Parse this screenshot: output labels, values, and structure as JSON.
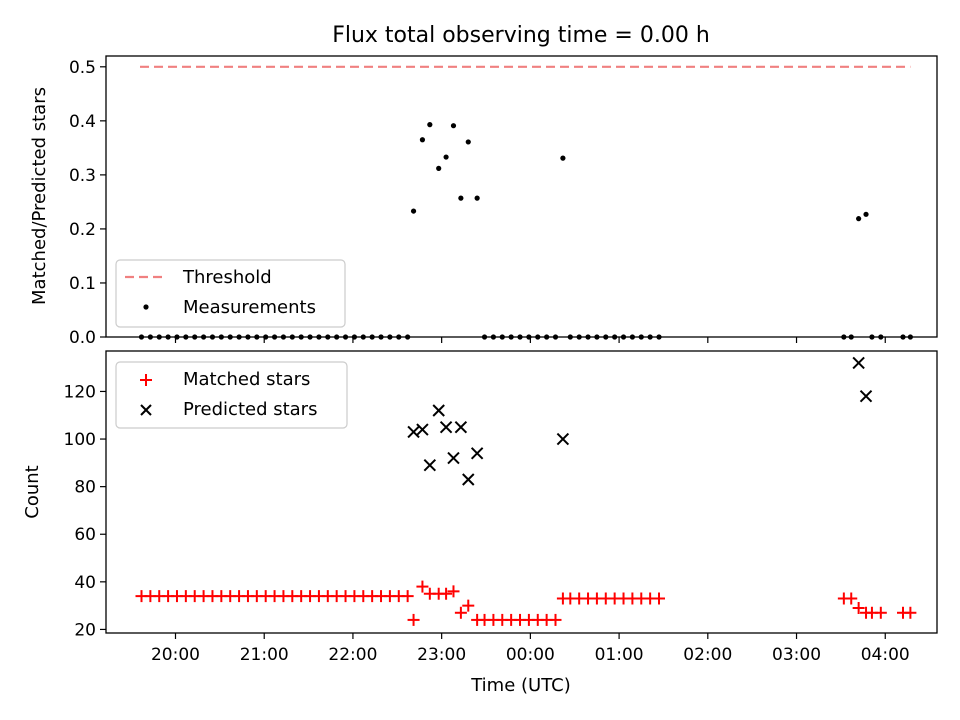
{
  "chart_data": [
    {
      "type": "scatter",
      "title": "Flux total observing time = 0.00 h",
      "xlabel": "",
      "ylabel": "Matched/Predicted stars",
      "ylim": [
        0,
        0.52
      ],
      "yticks": [
        "0.0",
        "0.1",
        "0.2",
        "0.3",
        "0.4",
        "0.5"
      ],
      "legend_position": "lower-left",
      "threshold": {
        "name": "Threshold",
        "value": 0.5,
        "x": [
          "19:36",
          "04:17"
        ],
        "color": "#f08080"
      },
      "series": [
        {
          "name": "Measurements",
          "color": "#000000",
          "points": [
            [
              "19:37",
              0
            ],
            [
              "19:43",
              0
            ],
            [
              "19:49",
              0
            ],
            [
              "19:55",
              0
            ],
            [
              "20:01",
              0
            ],
            [
              "20:07",
              0
            ],
            [
              "20:13",
              0
            ],
            [
              "20:19",
              0
            ],
            [
              "20:25",
              0
            ],
            [
              "20:31",
              0
            ],
            [
              "20:37",
              0
            ],
            [
              "20:43",
              0
            ],
            [
              "20:49",
              0
            ],
            [
              "20:55",
              0
            ],
            [
              "21:01",
              0
            ],
            [
              "21:07",
              0
            ],
            [
              "21:13",
              0
            ],
            [
              "21:19",
              0
            ],
            [
              "21:25",
              0
            ],
            [
              "21:31",
              0
            ],
            [
              "21:37",
              0
            ],
            [
              "21:43",
              0
            ],
            [
              "21:49",
              0
            ],
            [
              "21:55",
              0
            ],
            [
              "22:01",
              0
            ],
            [
              "22:07",
              0
            ],
            [
              "22:13",
              0
            ],
            [
              "22:19",
              0
            ],
            [
              "22:25",
              0
            ],
            [
              "22:31",
              0
            ],
            [
              "22:37",
              0
            ],
            [
              "22:41",
              0.233
            ],
            [
              "22:47",
              0.365
            ],
            [
              "22:52",
              0.393
            ],
            [
              "22:58",
              0.312
            ],
            [
              "23:03",
              0.333
            ],
            [
              "23:08",
              0.391
            ],
            [
              "23:13",
              0.257
            ],
            [
              "23:18",
              0.361
            ],
            [
              "23:24",
              0.257
            ],
            [
              "23:29",
              0
            ],
            [
              "23:35",
              0
            ],
            [
              "23:41",
              0
            ],
            [
              "23:47",
              0
            ],
            [
              "23:53",
              0
            ],
            [
              "23:59",
              0
            ],
            [
              "00:05",
              0
            ],
            [
              "00:11",
              0
            ],
            [
              "00:17",
              0
            ],
            [
              "00:22",
              0.331
            ],
            [
              "00:27",
              0
            ],
            [
              "00:33",
              0
            ],
            [
              "00:39",
              0
            ],
            [
              "00:45",
              0
            ],
            [
              "00:51",
              0
            ],
            [
              "00:57",
              0
            ],
            [
              "01:03",
              0
            ],
            [
              "01:09",
              0
            ],
            [
              "01:15",
              0
            ],
            [
              "01:21",
              0
            ],
            [
              "01:27",
              0
            ],
            [
              "03:32",
              0
            ],
            [
              "03:37",
              0
            ],
            [
              "03:42",
              0.219
            ],
            [
              "03:47",
              0.227
            ],
            [
              "03:51",
              0
            ],
            [
              "03:57",
              0
            ],
            [
              "04:12",
              0
            ],
            [
              "04:17",
              0
            ]
          ]
        }
      ]
    },
    {
      "type": "scatter",
      "title": "",
      "xlabel": "Time (UTC)",
      "ylabel": "Count",
      "ylim": [
        18.5,
        137
      ],
      "yticks": [
        "20",
        "40",
        "60",
        "80",
        "100",
        "120"
      ],
      "xticks": [
        "20:00",
        "21:00",
        "22:00",
        "23:00",
        "00:00",
        "01:00",
        "02:00",
        "03:00",
        "04:00"
      ],
      "xrange": [
        "19:13",
        "04:35"
      ],
      "legend_position": "upper-left",
      "series": [
        {
          "name": "Matched stars",
          "marker": "+",
          "color": "#ff0000",
          "points": [
            [
              "19:37",
              34
            ],
            [
              "19:43",
              34
            ],
            [
              "19:49",
              34
            ],
            [
              "19:55",
              34
            ],
            [
              "20:01",
              34
            ],
            [
              "20:07",
              34
            ],
            [
              "20:13",
              34
            ],
            [
              "20:19",
              34
            ],
            [
              "20:25",
              34
            ],
            [
              "20:31",
              34
            ],
            [
              "20:37",
              34
            ],
            [
              "20:43",
              34
            ],
            [
              "20:49",
              34
            ],
            [
              "20:55",
              34
            ],
            [
              "21:01",
              34
            ],
            [
              "21:07",
              34
            ],
            [
              "21:13",
              34
            ],
            [
              "21:19",
              34
            ],
            [
              "21:25",
              34
            ],
            [
              "21:31",
              34
            ],
            [
              "21:37",
              34
            ],
            [
              "21:43",
              34
            ],
            [
              "21:49",
              34
            ],
            [
              "21:55",
              34
            ],
            [
              "22:01",
              34
            ],
            [
              "22:07",
              34
            ],
            [
              "22:13",
              34
            ],
            [
              "22:19",
              34
            ],
            [
              "22:25",
              34
            ],
            [
              "22:31",
              34
            ],
            [
              "22:37",
              34
            ],
            [
              "22:41",
              24
            ],
            [
              "22:47",
              38
            ],
            [
              "22:52",
              35
            ],
            [
              "22:58",
              35
            ],
            [
              "23:03",
              35
            ],
            [
              "23:08",
              36
            ],
            [
              "23:13",
              27
            ],
            [
              "23:18",
              30
            ],
            [
              "23:24",
              24
            ],
            [
              "23:29",
              24
            ],
            [
              "23:35",
              24
            ],
            [
              "23:41",
              24
            ],
            [
              "23:47",
              24
            ],
            [
              "23:53",
              24
            ],
            [
              "23:59",
              24
            ],
            [
              "00:05",
              24
            ],
            [
              "00:11",
              24
            ],
            [
              "00:17",
              24
            ],
            [
              "00:22",
              33
            ],
            [
              "00:27",
              33
            ],
            [
              "00:33",
              33
            ],
            [
              "00:39",
              33
            ],
            [
              "00:45",
              33
            ],
            [
              "00:51",
              33
            ],
            [
              "00:57",
              33
            ],
            [
              "01:03",
              33
            ],
            [
              "01:09",
              33
            ],
            [
              "01:15",
              33
            ],
            [
              "01:21",
              33
            ],
            [
              "01:27",
              33
            ],
            [
              "03:32",
              33
            ],
            [
              "03:37",
              33
            ],
            [
              "03:42",
              29
            ],
            [
              "03:47",
              27
            ],
            [
              "03:51",
              27
            ],
            [
              "03:57",
              27
            ],
            [
              "04:12",
              27
            ],
            [
              "04:17",
              27
            ]
          ]
        },
        {
          "name": "Predicted stars",
          "marker": "x",
          "color": "#000000",
          "points": [
            [
              "22:41",
              103
            ],
            [
              "22:47",
              104
            ],
            [
              "22:52",
              89
            ],
            [
              "22:58",
              112
            ],
            [
              "23:03",
              105
            ],
            [
              "23:08",
              92
            ],
            [
              "23:13",
              105
            ],
            [
              "23:18",
              83
            ],
            [
              "23:24",
              94
            ],
            [
              "00:22",
              100
            ],
            [
              "03:42",
              132
            ],
            [
              "03:47",
              118
            ]
          ]
        }
      ]
    }
  ]
}
